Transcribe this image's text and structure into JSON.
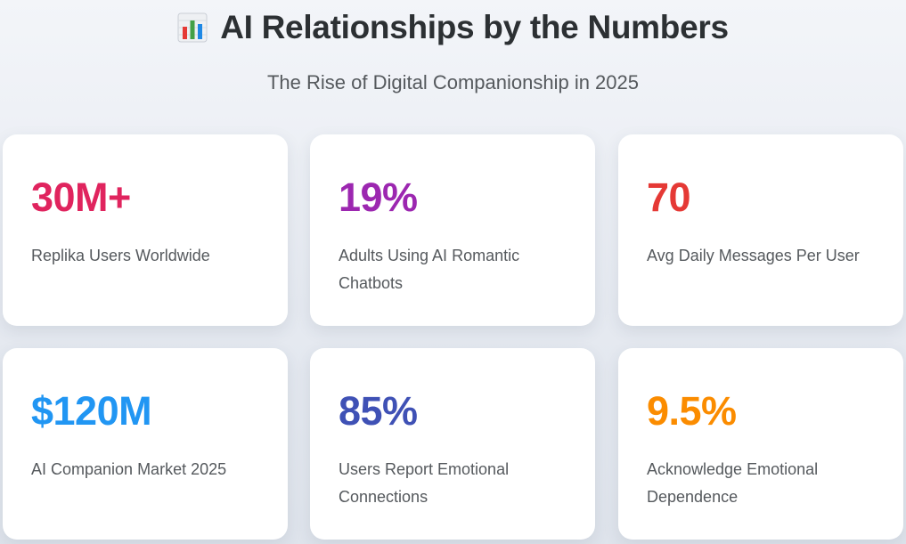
{
  "header": {
    "title": "AI Relationships by the Numbers",
    "title_icon": "bar-chart-icon",
    "subtitle": "The Rise of Digital Companionship in 2025"
  },
  "stats": [
    {
      "value": "30M+",
      "label": "Replika Users Worldwide",
      "color": "#e0245e"
    },
    {
      "value": "19%",
      "label": "Adults Using AI Romantic Chatbots",
      "color": "#9c27b0"
    },
    {
      "value": "70",
      "label": "Avg Daily Messages Per User",
      "color": "#e53935"
    },
    {
      "value": "$120M",
      "label": "AI Companion Market 2025",
      "color": "#2196f3"
    },
    {
      "value": "85%",
      "label": "Users Report Emotional Connections",
      "color": "#3f51b5"
    },
    {
      "value": "9.5%",
      "label": "Acknowledge Emotional Dependence",
      "color": "#fb8c00"
    }
  ]
}
